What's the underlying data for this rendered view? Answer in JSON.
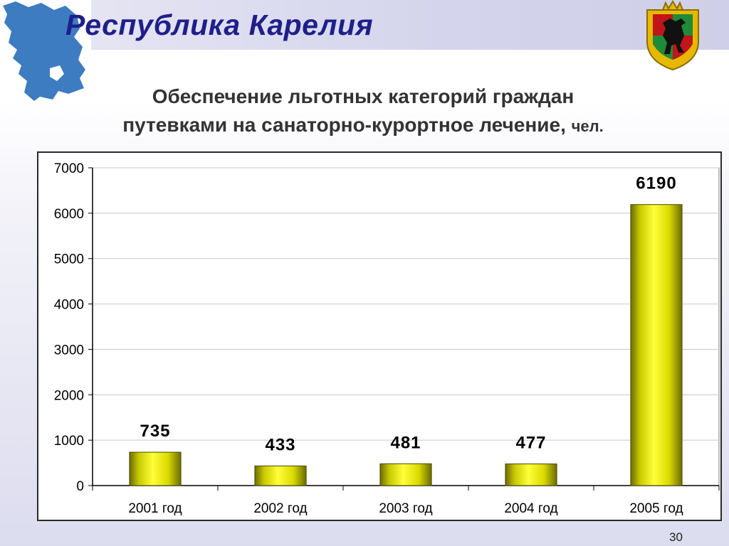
{
  "header": {
    "region_title": "Республика Карелия"
  },
  "slide": {
    "title_line1": "Обеспечение льготных категорий граждан",
    "title_line2": "путевками на санаторно-курортное лечение,",
    "unit": "чел.",
    "page_number": "30"
  },
  "icons": {
    "map": "karelia-map-icon",
    "emblem": "coat-of-arms-icon"
  },
  "colors": {
    "title": "#1f1f8a",
    "map_fill": "#3d7cc0",
    "bar_fill": "#e0e000",
    "bar_edge": "#555500"
  },
  "chart_data": {
    "type": "bar",
    "categories": [
      "2001 год",
      "2002 год",
      "2003 год",
      "2004 год",
      "2005 год"
    ],
    "values": [
      735,
      433,
      481,
      477,
      6190
    ],
    "data_labels": [
      "735",
      "433",
      "481",
      "477",
      "6190"
    ],
    "ylim": [
      0,
      7000
    ],
    "yticks": [
      0,
      1000,
      2000,
      3000,
      4000,
      5000,
      6000,
      7000
    ],
    "ytick_labels": [
      "0",
      "1000",
      "2000",
      "3000",
      "4000",
      "5000",
      "6000",
      "7000"
    ],
    "grid": true,
    "legend": "none",
    "title": "",
    "xlabel": "",
    "ylabel": ""
  }
}
